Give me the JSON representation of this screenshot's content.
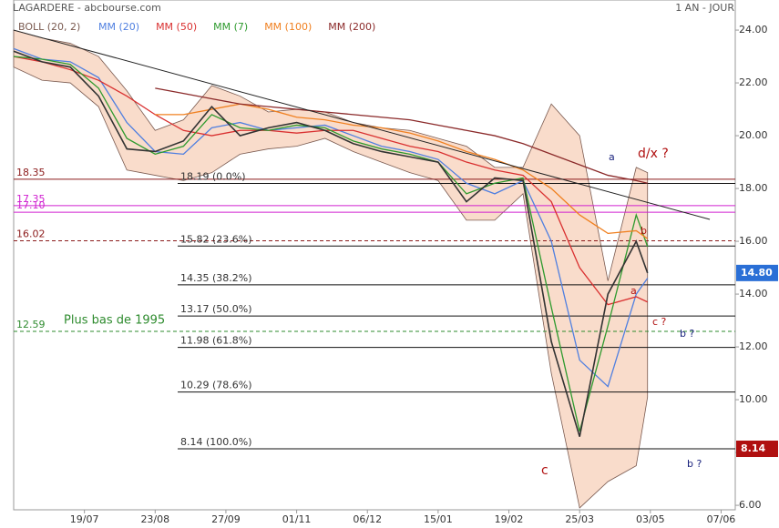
{
  "chart_data": {
    "type": "line",
    "title": "LAGARDERE - abcbourse.com",
    "period": "1 AN - JOUR",
    "x": [
      0,
      10,
      20,
      30,
      40,
      50,
      60,
      70,
      80,
      90,
      100,
      110,
      120,
      130,
      140,
      150,
      160,
      170,
      180,
      190,
      200,
      210,
      220,
      224
    ],
    "xlim": [
      0,
      255
    ],
    "xticks": [
      {
        "value": 25,
        "label": "19/07"
      },
      {
        "value": 50,
        "label": "23/08"
      },
      {
        "value": 75,
        "label": "27/09"
      },
      {
        "value": 100,
        "label": "01/11"
      },
      {
        "value": 125,
        "label": "06/12"
      },
      {
        "value": 150,
        "label": "15/01"
      },
      {
        "value": 175,
        "label": "19/02"
      },
      {
        "value": 200,
        "label": "25/03"
      },
      {
        "value": 225,
        "label": "03/05"
      },
      {
        "value": 250,
        "label": "07/06"
      }
    ],
    "ylim": [
      5.83,
      25.14
    ],
    "yticks": [
      {
        "value": 6,
        "label": "6.00"
      },
      {
        "value": 8,
        "label": "8.00"
      },
      {
        "value": 10,
        "label": "10.00"
      },
      {
        "value": 12,
        "label": "12.00"
      },
      {
        "value": 14,
        "label": "14.00"
      },
      {
        "value": 16,
        "label": "16.00"
      },
      {
        "value": 18,
        "label": "18.00"
      },
      {
        "value": 20,
        "label": "20.00"
      },
      {
        "value": 22,
        "label": "22.00"
      },
      {
        "value": 24,
        "label": "24.00"
      }
    ],
    "band": {
      "name": "BOLL (20, 2)",
      "color": "#f9dccb",
      "upper": [
        24.0,
        23.7,
        23.5,
        23.0,
        21.7,
        20.2,
        20.6,
        21.9,
        21.5,
        20.9,
        21.0,
        20.9,
        20.5,
        20.3,
        20.2,
        19.9,
        19.6,
        18.8,
        18.8,
        21.2,
        20.0,
        14.5,
        18.8,
        18.6
      ],
      "lower": [
        22.6,
        22.1,
        22.0,
        21.1,
        18.7,
        18.5,
        18.3,
        18.6,
        19.3,
        19.5,
        19.6,
        19.9,
        19.4,
        19.0,
        18.6,
        18.3,
        16.8,
        16.8,
        17.8,
        11.0,
        5.9,
        6.9,
        7.5,
        10.1
      ]
    },
    "price": {
      "color": "#333333",
      "values": [
        23.2,
        22.8,
        22.6,
        21.5,
        19.5,
        19.4,
        19.8,
        21.1,
        20.0,
        20.3,
        20.5,
        20.2,
        19.7,
        19.4,
        19.2,
        19.0,
        17.5,
        18.4,
        18.3,
        12.2,
        8.6,
        14.0,
        16.0,
        14.8
      ]
    },
    "series": [
      {
        "name": "MM (20)",
        "color": "#4f7fe0",
        "values": [
          23.3,
          22.9,
          22.8,
          22.2,
          20.5,
          19.4,
          19.3,
          20.3,
          20.5,
          20.2,
          20.3,
          20.4,
          20.0,
          19.6,
          19.4,
          19.1,
          18.2,
          17.8,
          18.3,
          16.0,
          11.5,
          10.5,
          14.0,
          14.6
        ]
      },
      {
        "name": "MM (50)",
        "color": "#d93030",
        "values": [
          23.0,
          22.8,
          22.5,
          22.1,
          21.5,
          20.8,
          20.2,
          20.0,
          20.2,
          20.2,
          20.1,
          20.2,
          20.2,
          19.9,
          19.6,
          19.4,
          19.0,
          18.7,
          18.5,
          17.5,
          15.0,
          13.6,
          13.9,
          13.7
        ]
      },
      {
        "name": "MM (7)",
        "color": "#2e9a2e",
        "values": [
          23.0,
          22.9,
          22.7,
          21.8,
          19.9,
          19.3,
          19.6,
          20.8,
          20.3,
          20.2,
          20.4,
          20.3,
          19.8,
          19.5,
          19.3,
          19.0,
          17.8,
          18.2,
          18.4,
          13.5,
          8.8,
          12.8,
          17.0,
          15.8
        ]
      },
      {
        "name": "MM (100)",
        "color": "#f08020",
        "values": [
          null,
          null,
          null,
          null,
          null,
          20.8,
          20.8,
          21.0,
          21.2,
          21.0,
          20.7,
          20.6,
          20.4,
          20.3,
          20.1,
          19.8,
          19.4,
          19.1,
          18.7,
          18.0,
          17.0,
          16.3,
          16.4,
          16.1
        ]
      },
      {
        "name": "MM (200)",
        "color": "#8b2a2a",
        "values": [
          null,
          null,
          null,
          null,
          null,
          21.8,
          21.6,
          21.4,
          21.2,
          21.1,
          21.0,
          20.9,
          20.8,
          20.7,
          20.6,
          20.4,
          20.2,
          20.0,
          19.7,
          19.3,
          18.9,
          18.5,
          18.3,
          18.2
        ]
      }
    ],
    "trendline": {
      "x": [
        0,
        246
      ],
      "values": [
        24,
        16.83
      ],
      "color": "#222222"
    },
    "levels": [
      {
        "value": 18.35,
        "label": "18.35",
        "color": "#8b1a1a"
      },
      {
        "value": 17.35,
        "label": "17.35",
        "color": "#d020d0"
      },
      {
        "value": 17.1,
        "label": "17.10",
        "color": "#d020d0"
      },
      {
        "value": 16.02,
        "label": "16.02",
        "color": "#8b1a1a",
        "dashed": true
      },
      {
        "value": 12.59,
        "label": "12.59",
        "color": "#2e8b2e",
        "dashed": true,
        "note": "Plus bas de 1995"
      }
    ],
    "fibo": [
      {
        "value": 18.19,
        "label": "18.19 (0.0%)"
      },
      {
        "value": 15.82,
        "label": "15.82 (23.6%)"
      },
      {
        "value": 14.35,
        "label": "14.35 (38.2%)"
      },
      {
        "value": 13.17,
        "label": "13.17 (50.0%)"
      },
      {
        "value": 11.98,
        "label": "11.98 (61.8%)"
      },
      {
        "value": 10.29,
        "label": "10.29 (78.6%)"
      },
      {
        "value": 8.14,
        "label": "8.14 (100.0%)"
      }
    ],
    "tags": [
      {
        "value": 14.8,
        "label": "14.80",
        "color": "#2a6fd6"
      },
      {
        "value": 8.14,
        "label": "8.14",
        "color": "#b01010"
      }
    ],
    "annotations": [
      {
        "text": "a",
        "color": "#1a237e"
      },
      {
        "text": "d/x ?",
        "color": "#b01010"
      },
      {
        "text": "b",
        "color": "#b01010"
      },
      {
        "text": "a",
        "color": "#b01010"
      },
      {
        "text": "c ?",
        "color": "#b01010"
      },
      {
        "text": "b ?",
        "color": "#1a237e"
      },
      {
        "text": "c",
        "color": "#b01010"
      },
      {
        "text": "b ?",
        "color": "#1a237e"
      }
    ]
  }
}
